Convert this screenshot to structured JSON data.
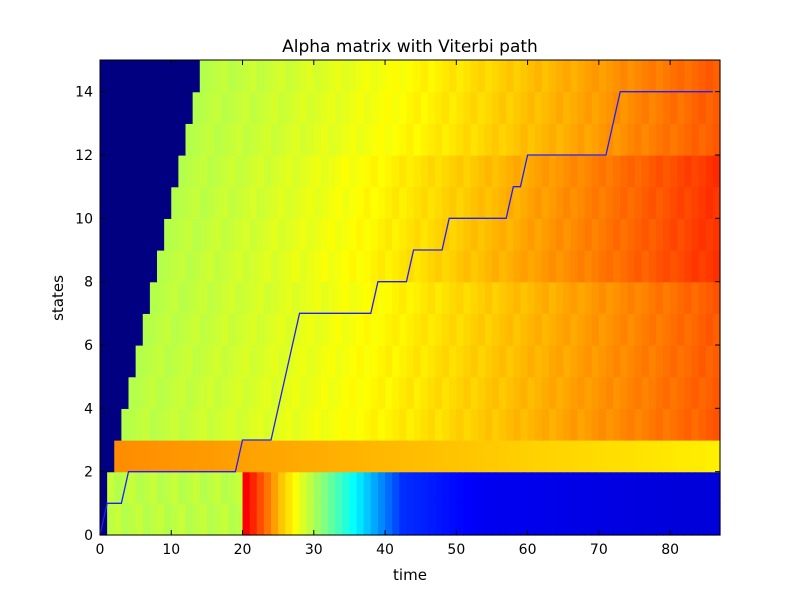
{
  "chart_data": {
    "type": "heatmap",
    "title": "Alpha matrix with Viterbi path",
    "xlabel": "time",
    "ylabel": "states",
    "xlim": [
      0,
      87
    ],
    "ylim": [
      0,
      15
    ],
    "xticks": [
      0,
      10,
      20,
      30,
      40,
      50,
      60,
      70,
      80
    ],
    "yticks": [
      0,
      2,
      4,
      6,
      8,
      10,
      12,
      14
    ],
    "grid": false,
    "legend": "none",
    "colormap": "jet",
    "n_time": 87,
    "n_states": 15,
    "state_row_values": [
      {
        "state": 0,
        "dark_until": 1,
        "profile": "dip"
      },
      {
        "state": 1,
        "dark_until": 1,
        "profile": "dip"
      },
      {
        "state": 2,
        "dark_until": 2,
        "profile": "rise_to_yellowgreen"
      },
      {
        "state": 3,
        "dark_until": 3,
        "profile": "rise_to_orange"
      },
      {
        "state": 4,
        "dark_until": 4,
        "profile": "rise_to_orange"
      },
      {
        "state": 5,
        "dark_until": 5,
        "profile": "rise_to_orange"
      },
      {
        "state": 6,
        "dark_until": 6,
        "profile": "rise_to_orange"
      },
      {
        "state": 7,
        "dark_until": 7,
        "profile": "rise_to_orange"
      },
      {
        "state": 8,
        "dark_until": 8,
        "profile": "rise_to_orange"
      },
      {
        "state": 9,
        "dark_until": 9,
        "profile": "rise_to_orange"
      },
      {
        "state": 10,
        "dark_until": 10,
        "profile": "rise_to_orange"
      },
      {
        "state": 11,
        "dark_until": 11,
        "profile": "rise_to_orange"
      },
      {
        "state": 12,
        "dark_until": 12,
        "profile": "rise_to_orange"
      },
      {
        "state": 13,
        "dark_until": 13,
        "profile": "rise_to_orange"
      },
      {
        "state": 14,
        "dark_until": 14,
        "profile": "rise_to_orange"
      }
    ],
    "viterbi_path": [
      [
        0,
        0
      ],
      [
        1,
        1
      ],
      [
        3,
        1
      ],
      [
        4,
        2
      ],
      [
        19,
        2
      ],
      [
        20,
        3
      ],
      [
        24,
        3
      ],
      [
        28,
        7
      ],
      [
        38,
        7
      ],
      [
        39,
        8
      ],
      [
        43,
        8
      ],
      [
        44,
        9
      ],
      [
        48,
        9
      ],
      [
        49,
        10
      ],
      [
        57,
        10
      ],
      [
        58,
        11
      ],
      [
        59,
        11
      ],
      [
        60,
        12
      ],
      [
        71,
        12
      ],
      [
        73,
        14
      ],
      [
        86,
        14
      ]
    ],
    "colors": {
      "path": "#2020ff",
      "masked": "#000080"
    }
  }
}
